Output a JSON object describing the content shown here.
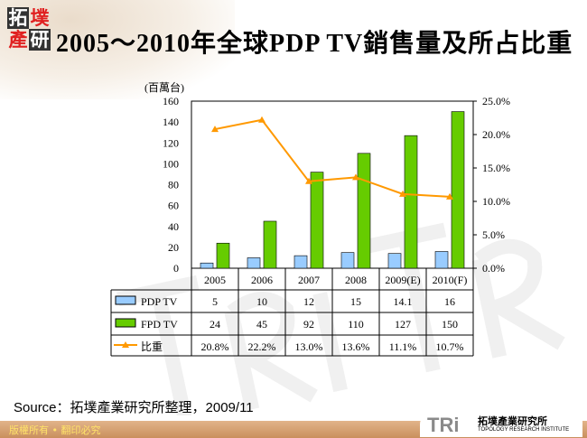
{
  "header": {
    "logo_text": "拓墣產研",
    "title": "2005～2010年全球PDP TV銷售量及所占比重"
  },
  "chart_data": {
    "type": "bar+line",
    "title": "2005～2010年全球PDP TV銷售量及所占比重",
    "ylabel": "(百萬台)",
    "ylim": [
      0,
      160
    ],
    "yticks": [
      "0",
      "20",
      "40",
      "60",
      "80",
      "100",
      "120",
      "140",
      "160"
    ],
    "y2lim": [
      0,
      25
    ],
    "y2ticks": [
      "0.0%",
      "5.0%",
      "10.0%",
      "15.0%",
      "20.0%",
      "25.0%"
    ],
    "categories": [
      "2005",
      "2006",
      "2007",
      "2008",
      "2009(E)",
      "2010(F)"
    ],
    "series": [
      {
        "name": "PDP TV",
        "type": "bar",
        "color": "#99ccff",
        "values": [
          5,
          10,
          12,
          15,
          14.1,
          16
        ],
        "labels": [
          "5",
          "10",
          "12",
          "15",
          "14.1",
          "16"
        ]
      },
      {
        "name": "FPD TV",
        "type": "bar",
        "color": "#66cc00",
        "values": [
          24,
          45,
          92,
          110,
          127,
          150
        ],
        "labels": [
          "24",
          "45",
          "92",
          "110",
          "127",
          "150"
        ]
      },
      {
        "name": "比重",
        "type": "line",
        "axis": "right",
        "color": "#ff9900",
        "values": [
          20.8,
          22.2,
          13.0,
          13.6,
          11.1,
          10.7
        ],
        "labels": [
          "20.8%",
          "22.2%",
          "13.0%",
          "13.6%",
          "11.1%",
          "10.7%"
        ]
      }
    ],
    "grid": false,
    "legend": "data-table"
  },
  "source": "Source：拓墣產業研究所整理，2009/11",
  "footer": {
    "copyright": "版權所有 • 翻印必究",
    "brand": "TRi",
    "brand_name": "拓墣產業研究所",
    "brand_en": "TOPOLOGY RESEARCH INSTITUTE"
  }
}
